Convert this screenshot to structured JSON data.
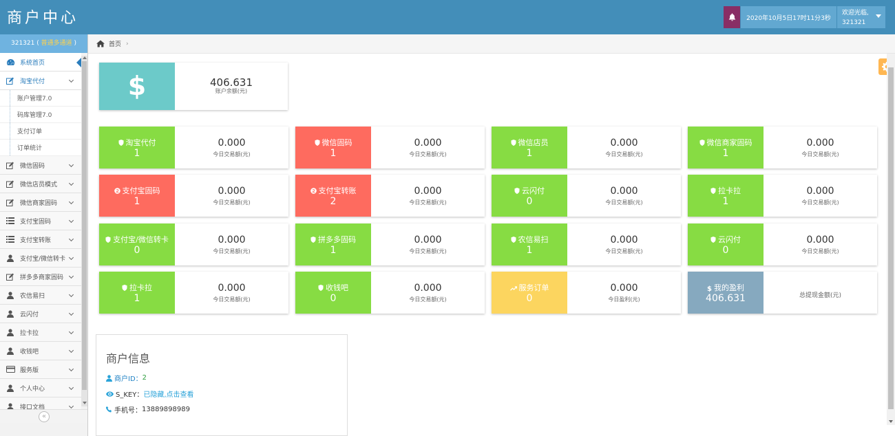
{
  "header": {
    "title": "商户中心",
    "datetime": "2020年10月5日17时11分3秒",
    "welcome": "欢迎光临,",
    "username": "321321"
  },
  "sidebar": {
    "user_id": "321321",
    "user_grade": "普通多通道",
    "items": [
      {
        "label": "系统首页",
        "icon": "dashboard-icon",
        "active": true
      },
      {
        "label": "淘宝代付",
        "icon": "edit-icon",
        "open": true,
        "children": [
          "账户管理7.0",
          "码库管理7.0",
          "支付订单",
          "订单统计"
        ]
      },
      {
        "label": "微信固码",
        "icon": "edit-icon"
      },
      {
        "label": "微信店员模式",
        "icon": "edit-icon"
      },
      {
        "label": "微信商家固码",
        "icon": "edit-icon"
      },
      {
        "label": "支付宝固码",
        "icon": "list-icon"
      },
      {
        "label": "支付宝转账",
        "icon": "list-icon"
      },
      {
        "label": "支付宝/微信转卡",
        "icon": "user-icon"
      },
      {
        "label": "拼多多商家固码",
        "icon": "edit-icon"
      },
      {
        "label": "农信易扫",
        "icon": "user-icon"
      },
      {
        "label": "云闪付",
        "icon": "user-icon"
      },
      {
        "label": "拉卡拉",
        "icon": "user-icon"
      },
      {
        "label": "收钱吧",
        "icon": "user-icon"
      },
      {
        "label": "服务版",
        "icon": "card-icon"
      },
      {
        "label": "个人中心",
        "icon": "user-icon"
      },
      {
        "label": "接口文档",
        "icon": "user-icon"
      }
    ]
  },
  "breadcrumb": {
    "home": "首页"
  },
  "balance": {
    "amount": "406.631",
    "label": "账户余额(元)",
    "symbol": "$"
  },
  "cards": [
    {
      "name": "淘宝代付",
      "count": "1",
      "amount": "0.000",
      "sub": "今日交易额(元)",
      "color": "green",
      "icon": "shield-icon"
    },
    {
      "name": "微信固码",
      "count": "1",
      "amount": "0.000",
      "sub": "今日交易额(元)",
      "color": "red",
      "icon": "shield-icon"
    },
    {
      "name": "微信店员",
      "count": "1",
      "amount": "0.000",
      "sub": "今日交易额(元)",
      "color": "green",
      "icon": "shield-icon"
    },
    {
      "name": "微信商家固码",
      "count": "1",
      "amount": "0.000",
      "sub": "今日交易额(元)",
      "color": "green",
      "icon": "shield-icon"
    },
    {
      "name": "支付宝固码",
      "count": "1",
      "amount": "0.000",
      "sub": "今日交易额(元)",
      "color": "red",
      "icon": "alipay-icon"
    },
    {
      "name": "支付宝转账",
      "count": "2",
      "amount": "0.000",
      "sub": "今日交易额(元)",
      "color": "red",
      "icon": "alipay-icon"
    },
    {
      "name": "云闪付",
      "count": "0",
      "amount": "0.000",
      "sub": "今日交易额(元)",
      "color": "green",
      "icon": "shield-icon"
    },
    {
      "name": "拉卡拉",
      "count": "1",
      "amount": "0.000",
      "sub": "今日交易额(元)",
      "color": "green",
      "icon": "shield-icon"
    },
    {
      "name": "支付宝/微信转卡",
      "count": "0",
      "amount": "0.000",
      "sub": "今日交易额(元)",
      "color": "green",
      "icon": "shield-icon"
    },
    {
      "name": "拼多多固码",
      "count": "1",
      "amount": "0.000",
      "sub": "今日交易额(元)",
      "color": "green",
      "icon": "shield-icon"
    },
    {
      "name": "农信易扫",
      "count": "1",
      "amount": "0.000",
      "sub": "今日交易额(元)",
      "color": "green",
      "icon": "shield-icon"
    },
    {
      "name": "云闪付",
      "count": "0",
      "amount": "0.000",
      "sub": "今日交易额(元)",
      "color": "green",
      "icon": "shield-icon"
    },
    {
      "name": "拉卡拉",
      "count": "1",
      "amount": "0.000",
      "sub": "今日交易额(元)",
      "color": "green",
      "icon": "shield-icon"
    },
    {
      "name": "收钱吧",
      "count": "0",
      "amount": "0.000",
      "sub": "今日交易额(元)",
      "color": "green",
      "icon": "shield-icon"
    },
    {
      "name": "服务订单",
      "count": "0",
      "amount": "0.000",
      "sub": "今日盈利(元)",
      "color": "yellow",
      "icon": "trend-icon"
    },
    {
      "name": "我的盈利",
      "count": "406.631",
      "amount": "",
      "sub": "总提现金额(元)",
      "color": "gray",
      "icon": "dollar-icon"
    }
  ],
  "merchant": {
    "title": "商户信息",
    "id_label": "商户ID：",
    "id_value": "2",
    "skey_label": "S_KEY：",
    "skey_value": "已隐藏,点击查看",
    "phone_label": "手机号：",
    "phone_value": "13889898989"
  },
  "colors": {
    "navbar": "#438eb9",
    "green": "#87dc43",
    "red": "#fe6b5f",
    "yellow": "#fcd55f",
    "gray": "#86a9bf",
    "teal": "#6ccac9"
  }
}
